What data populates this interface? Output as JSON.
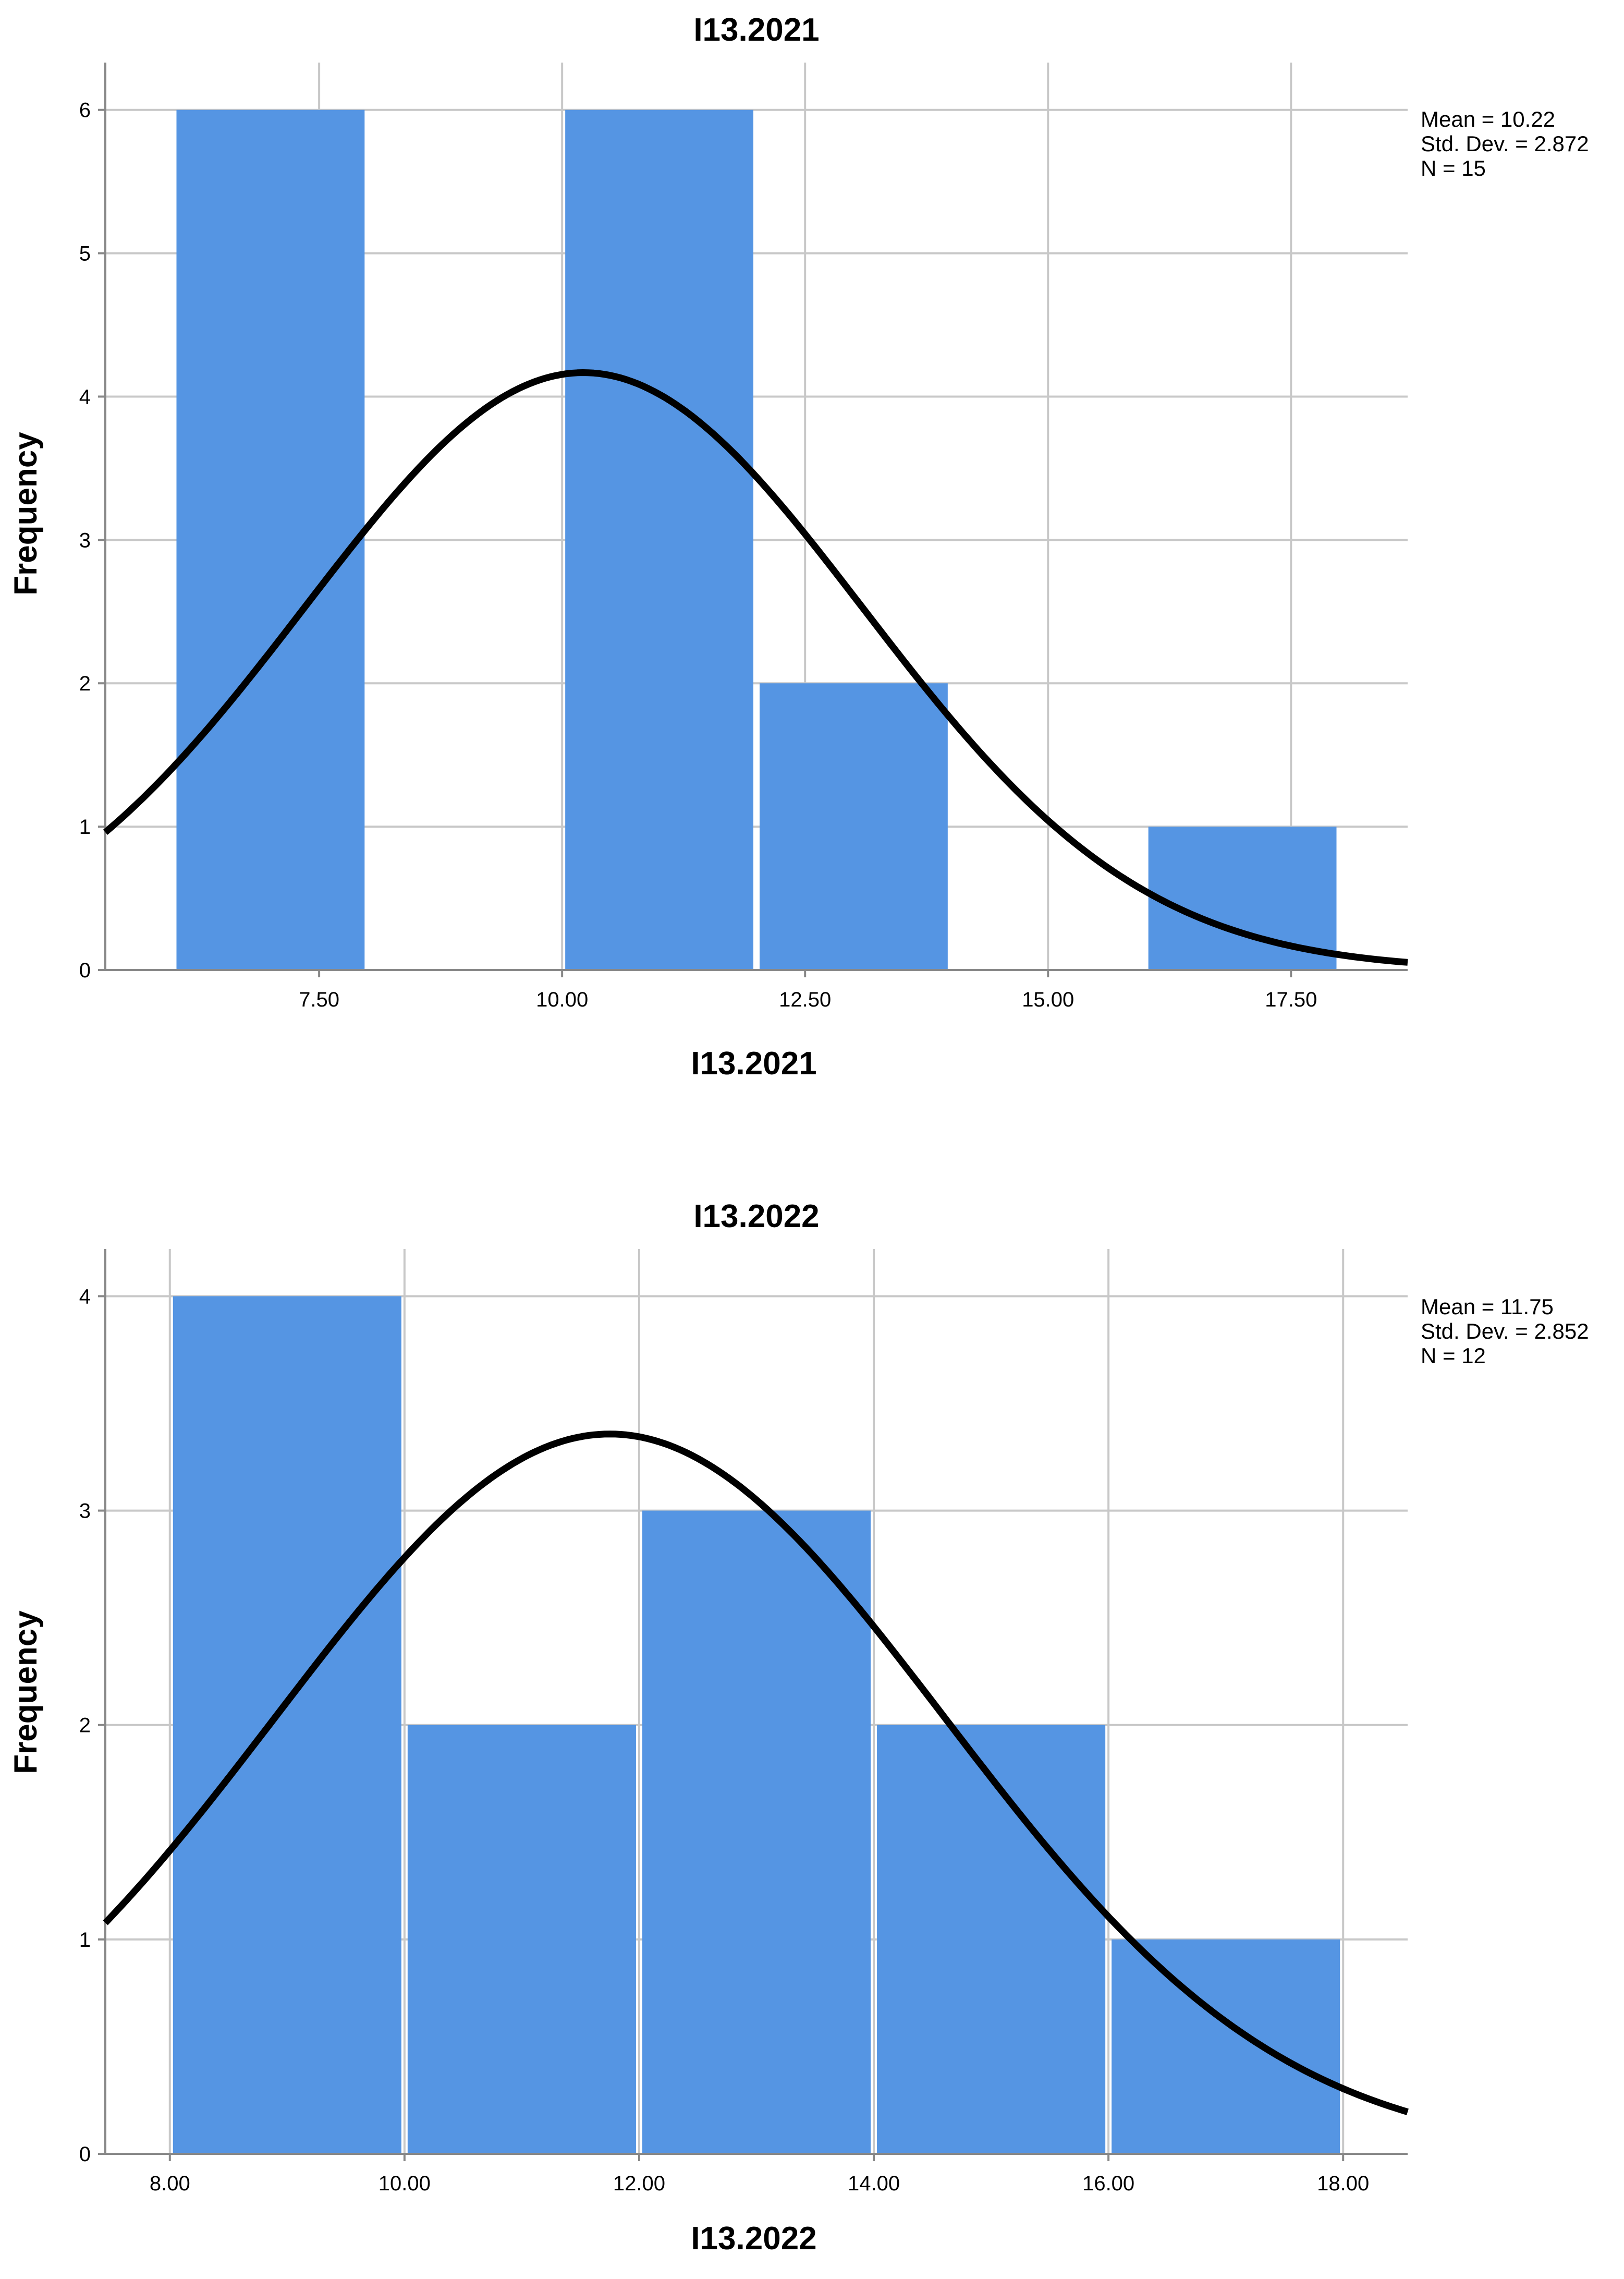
{
  "charts": [
    {
      "id": "2021",
      "stats": {
        "mean": "Mean = 10.22",
        "std": "Std. Dev. = 2.872",
        "n": "N = 15"
      }
    },
    {
      "id": "2022",
      "stats": {
        "mean": "Mean = 11.75",
        "std": "Std. Dev. = 2.852",
        "n": "N = 12"
      }
    }
  ],
  "colors": {
    "bar": "#5595e3",
    "grid": "#c8c8c8",
    "axis": "#888888",
    "curve": "#000000",
    "text": "#000000"
  },
  "chart_data": [
    {
      "type": "histogram",
      "title": "I13.2021",
      "xlabel": "I13.2021",
      "ylabel": "Frequency",
      "xlim": [
        5.3,
        18.7
      ],
      "ylim": [
        0,
        6.33
      ],
      "xticks": [
        7.5,
        10,
        12.5,
        15,
        17.5
      ],
      "xtick_labels": [
        "7.50",
        "10.00",
        "12.50",
        "15.00",
        "17.50"
      ],
      "yticks": [
        0,
        1,
        2,
        3,
        4,
        5,
        6
      ],
      "ytick_labels": [
        "0",
        "1",
        "2",
        "3",
        "4",
        "5",
        "6"
      ],
      "bins": [
        {
          "x0": 6,
          "x1": 8,
          "count": 6
        },
        {
          "x0": 8,
          "x1": 10,
          "count": 0
        },
        {
          "x0": 10,
          "x1": 12,
          "count": 6
        },
        {
          "x0": 12,
          "x1": 14,
          "count": 2
        },
        {
          "x0": 14,
          "x1": 16,
          "count": 0
        },
        {
          "x0": 16,
          "x1": 18,
          "count": 1
        }
      ],
      "bin_width": 2,
      "normal_curve": {
        "mean": 10.22,
        "std": 2.872,
        "n": 15
      },
      "grid": true
    },
    {
      "type": "histogram",
      "title": "I13.2022",
      "xlabel": "I13.2022",
      "ylabel": "Frequency",
      "xlim": [
        7.45,
        18.55
      ],
      "ylim": [
        0,
        4.22
      ],
      "xticks": [
        8,
        10,
        12,
        14,
        16,
        18
      ],
      "xtick_labels": [
        "8.00",
        "10.00",
        "12.00",
        "14.00",
        "16.00",
        "18.00"
      ],
      "yticks": [
        0,
        1,
        2,
        3,
        4
      ],
      "ytick_labels": [
        "0",
        "1",
        "2",
        "3",
        "4"
      ],
      "bins": [
        {
          "x0": 8,
          "x1": 10,
          "count": 4
        },
        {
          "x0": 10,
          "x1": 12,
          "count": 2
        },
        {
          "x0": 12,
          "x1": 14,
          "count": 3
        },
        {
          "x0": 14,
          "x1": 16,
          "count": 2
        },
        {
          "x0": 16,
          "x1": 18,
          "count": 1
        }
      ],
      "bin_width": 2,
      "normal_curve": {
        "mean": 11.75,
        "std": 2.852,
        "n": 12
      },
      "grid": true
    }
  ]
}
